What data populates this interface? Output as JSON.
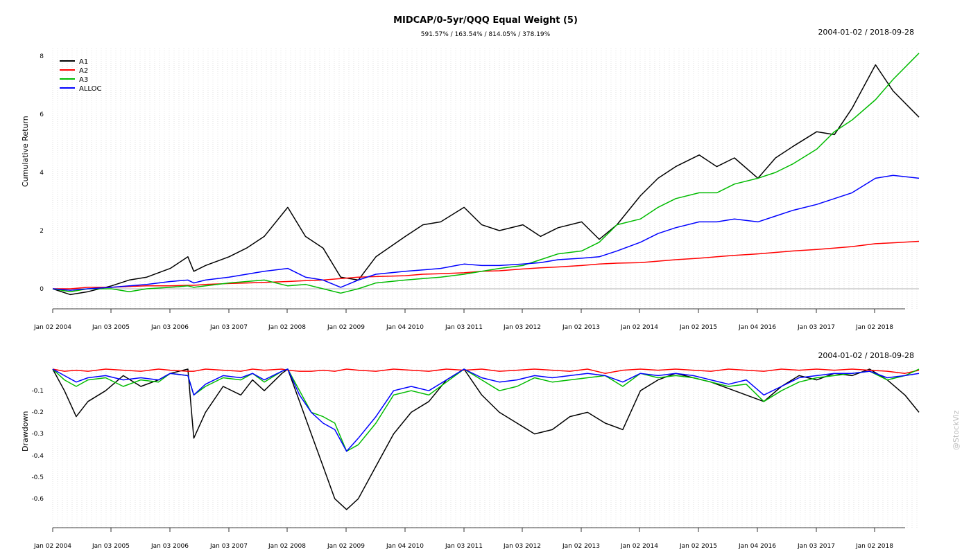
{
  "chart_data": [
    {
      "type": "line",
      "title": "MIDCAP/0-5yr/QQQ Equal Weight (5)",
      "subtitle": "591.57% / 163.54% / 814.05% / 378.19%",
      "date_range": "2004-01-02 / 2018-09-28",
      "ylabel": "Cumulative Return",
      "ylim": [
        -0.3,
        8.2
      ],
      "yticks": [
        "0",
        "2",
        "4",
        "6",
        "8"
      ],
      "xticks": [
        "Jan 02 2004",
        "Jan 03 2005",
        "Jan 03 2006",
        "Jan 03 2007",
        "Jan 02 2008",
        "Jan 02 2009",
        "Jan 04 2010",
        "Jan 03 2011",
        "Jan 03 2012",
        "Jan 02 2013",
        "Jan 02 2014",
        "Jan 02 2015",
        "Jan 04 2016",
        "Jan 03 2017",
        "Jan 02 2018"
      ],
      "grid": "vertical dotted",
      "legend": "top-left",
      "x": [
        2004.0,
        2004.3,
        2004.6,
        2005.0,
        2005.3,
        2005.6,
        2006.0,
        2006.3,
        2006.4,
        2006.6,
        2007.0,
        2007.3,
        2007.6,
        2008.0,
        2008.3,
        2008.6,
        2008.9,
        2009.2,
        2009.5,
        2010.0,
        2010.3,
        2010.6,
        2011.0,
        2011.3,
        2011.6,
        2012.0,
        2012.3,
        2012.6,
        2013.0,
        2013.3,
        2013.6,
        2014.0,
        2014.3,
        2014.6,
        2015.0,
        2015.3,
        2015.6,
        2016.0,
        2016.3,
        2016.6,
        2017.0,
        2017.3,
        2017.6,
        2018.0,
        2018.3,
        2018.74
      ],
      "series": [
        {
          "name": "A1",
          "color": "#000000",
          "values": [
            0.0,
            -0.2,
            -0.1,
            0.1,
            0.3,
            0.4,
            0.7,
            1.1,
            0.6,
            0.8,
            1.1,
            1.4,
            1.8,
            2.8,
            1.8,
            1.4,
            0.4,
            0.3,
            1.1,
            1.8,
            2.2,
            2.3,
            2.8,
            2.2,
            2.0,
            2.2,
            1.8,
            2.1,
            2.3,
            1.7,
            2.2,
            3.2,
            3.8,
            4.2,
            4.6,
            4.2,
            4.5,
            3.8,
            4.5,
            4.9,
            5.4,
            5.3,
            6.2,
            7.7,
            6.8,
            5.9
          ]
        },
        {
          "name": "A2",
          "color": "#ff0000",
          "values": [
            0.0,
            0.0,
            0.05,
            0.05,
            0.08,
            0.1,
            0.1,
            0.12,
            0.12,
            0.15,
            0.18,
            0.2,
            0.22,
            0.25,
            0.28,
            0.3,
            0.35,
            0.4,
            0.42,
            0.45,
            0.5,
            0.52,
            0.55,
            0.6,
            0.62,
            0.68,
            0.72,
            0.75,
            0.8,
            0.85,
            0.88,
            0.9,
            0.95,
            1.0,
            1.05,
            1.1,
            1.15,
            1.2,
            1.25,
            1.3,
            1.35,
            1.4,
            1.45,
            1.55,
            1.58,
            1.63
          ]
        },
        {
          "name": "A3",
          "color": "#00bb00",
          "values": [
            0.0,
            -0.1,
            0.0,
            0.0,
            -0.1,
            0.0,
            0.05,
            0.1,
            0.05,
            0.1,
            0.2,
            0.25,
            0.3,
            0.1,
            0.15,
            0.0,
            -0.15,
            0.0,
            0.2,
            0.3,
            0.35,
            0.4,
            0.5,
            0.6,
            0.7,
            0.8,
            1.0,
            1.2,
            1.3,
            1.6,
            2.2,
            2.4,
            2.8,
            3.1,
            3.3,
            3.3,
            3.6,
            3.8,
            4.0,
            4.3,
            4.8,
            5.4,
            5.8,
            6.5,
            7.2,
            8.1
          ]
        },
        {
          "name": "ALLOC",
          "color": "#0000ff",
          "values": [
            0.0,
            -0.05,
            0.0,
            0.05,
            0.1,
            0.15,
            0.25,
            0.3,
            0.2,
            0.3,
            0.4,
            0.5,
            0.6,
            0.7,
            0.4,
            0.3,
            0.05,
            0.3,
            0.5,
            0.6,
            0.65,
            0.7,
            0.85,
            0.8,
            0.8,
            0.85,
            0.9,
            1.0,
            1.05,
            1.1,
            1.3,
            1.6,
            1.9,
            2.1,
            2.3,
            2.3,
            2.4,
            2.3,
            2.5,
            2.7,
            2.9,
            3.1,
            3.3,
            3.8,
            3.9,
            3.8
          ]
        }
      ]
    },
    {
      "type": "line",
      "date_range": "2004-01-02 / 2018-09-28",
      "ylabel": "Drawdown",
      "ylim": [
        -0.7,
        0
      ],
      "yticks": [
        "-0.1",
        "-0.2",
        "-0.3",
        "-0.4",
        "-0.5",
        "-0.6"
      ],
      "xticks": [
        "Jan 02 2004",
        "Jan 03 2005",
        "Jan 03 2006",
        "Jan 03 2007",
        "Jan 02 2008",
        "Jan 02 2009",
        "Jan 04 2010",
        "Jan 03 2011",
        "Jan 03 2012",
        "Jan 02 2013",
        "Jan 02 2014",
        "Jan 02 2015",
        "Jan 04 2016",
        "Jan 03 2017",
        "Jan 02 2018"
      ],
      "grid": "vertical dotted",
      "x": [
        2004.0,
        2004.2,
        2004.4,
        2004.6,
        2004.9,
        2005.2,
        2005.5,
        2005.8,
        2006.0,
        2006.3,
        2006.4,
        2006.6,
        2006.9,
        2007.2,
        2007.4,
        2007.6,
        2007.9,
        2008.0,
        2008.2,
        2008.4,
        2008.6,
        2008.8,
        2009.0,
        2009.2,
        2009.5,
        2009.8,
        2010.1,
        2010.4,
        2010.7,
        2011.0,
        2011.3,
        2011.6,
        2011.9,
        2012.2,
        2012.5,
        2012.8,
        2013.1,
        2013.4,
        2013.7,
        2014.0,
        2014.3,
        2014.6,
        2014.9,
        2015.2,
        2015.5,
        2015.8,
        2016.1,
        2016.4,
        2016.7,
        2017.0,
        2017.3,
        2017.6,
        2017.9,
        2018.2,
        2018.5,
        2018.74
      ],
      "series": [
        {
          "name": "A1",
          "color": "#000000",
          "values": [
            0.0,
            -0.1,
            -0.22,
            -0.15,
            -0.1,
            -0.03,
            -0.08,
            -0.05,
            -0.02,
            0.0,
            -0.32,
            -0.2,
            -0.08,
            -0.12,
            -0.05,
            -0.1,
            -0.02,
            0.0,
            -0.15,
            -0.3,
            -0.45,
            -0.6,
            -0.65,
            -0.6,
            -0.45,
            -0.3,
            -0.2,
            -0.15,
            -0.05,
            0.0,
            -0.12,
            -0.2,
            -0.25,
            -0.3,
            -0.28,
            -0.22,
            -0.2,
            -0.25,
            -0.28,
            -0.1,
            -0.05,
            -0.02,
            -0.04,
            -0.06,
            -0.09,
            -0.12,
            -0.15,
            -0.08,
            -0.03,
            -0.05,
            -0.02,
            -0.03,
            0.0,
            -0.05,
            -0.12,
            -0.2
          ]
        },
        {
          "name": "A2",
          "color": "#ff0000",
          "values": [
            0.0,
            -0.01,
            -0.005,
            -0.01,
            0.0,
            -0.005,
            -0.01,
            0.0,
            -0.005,
            -0.01,
            -0.01,
            0.0,
            -0.005,
            -0.01,
            0.0,
            -0.005,
            0.0,
            -0.005,
            -0.01,
            -0.01,
            -0.005,
            -0.01,
            0.0,
            -0.005,
            -0.01,
            0.0,
            -0.005,
            -0.01,
            0.0,
            -0.005,
            0.0,
            -0.01,
            -0.005,
            0.0,
            -0.005,
            -0.01,
            0.0,
            -0.02,
            -0.005,
            0.0,
            -0.005,
            0.0,
            -0.005,
            -0.01,
            0.0,
            -0.005,
            -0.01,
            0.0,
            -0.005,
            0.0,
            -0.005,
            0.0,
            -0.005,
            -0.01,
            -0.02,
            -0.005
          ]
        },
        {
          "name": "A3",
          "color": "#00bb00",
          "values": [
            0.0,
            -0.05,
            -0.08,
            -0.05,
            -0.04,
            -0.08,
            -0.05,
            -0.06,
            -0.02,
            -0.03,
            -0.12,
            -0.08,
            -0.04,
            -0.05,
            -0.02,
            -0.06,
            -0.01,
            0.0,
            -0.1,
            -0.2,
            -0.22,
            -0.25,
            -0.38,
            -0.35,
            -0.25,
            -0.12,
            -0.1,
            -0.12,
            -0.06,
            0.0,
            -0.05,
            -0.1,
            -0.08,
            -0.04,
            -0.06,
            -0.05,
            -0.04,
            -0.03,
            -0.08,
            -0.02,
            -0.04,
            -0.03,
            -0.04,
            -0.06,
            -0.08,
            -0.07,
            -0.15,
            -0.1,
            -0.06,
            -0.04,
            -0.03,
            -0.02,
            -0.01,
            -0.05,
            -0.03,
            0.0
          ]
        },
        {
          "name": "ALLOC",
          "color": "#0000ff",
          "values": [
            0.0,
            -0.03,
            -0.06,
            -0.04,
            -0.03,
            -0.05,
            -0.04,
            -0.05,
            -0.02,
            -0.03,
            -0.12,
            -0.07,
            -0.03,
            -0.04,
            -0.02,
            -0.05,
            -0.01,
            0.0,
            -0.12,
            -0.2,
            -0.25,
            -0.28,
            -0.38,
            -0.32,
            -0.22,
            -0.1,
            -0.08,
            -0.1,
            -0.05,
            0.0,
            -0.04,
            -0.06,
            -0.05,
            -0.03,
            -0.04,
            -0.03,
            -0.02,
            -0.03,
            -0.06,
            -0.02,
            -0.03,
            -0.02,
            -0.03,
            -0.05,
            -0.07,
            -0.05,
            -0.12,
            -0.08,
            -0.04,
            -0.03,
            -0.02,
            -0.02,
            -0.01,
            -0.04,
            -0.03,
            -0.02
          ]
        }
      ]
    }
  ],
  "watermark": "@StockViz"
}
